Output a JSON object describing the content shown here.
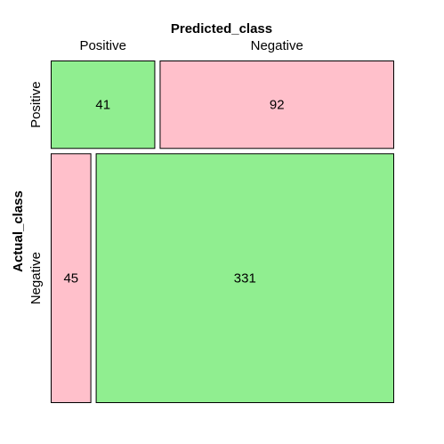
{
  "chart_data": {
    "type": "mosaic",
    "title": "Predicted_class",
    "ylabel": "Actual_class",
    "col_categories": [
      "Positive",
      "Negative"
    ],
    "row_categories": [
      "Positive",
      "Negative"
    ],
    "cells": [
      {
        "actual": "Positive",
        "predicted": "Positive",
        "value": 41
      },
      {
        "actual": "Positive",
        "predicted": "Negative",
        "value": 92
      },
      {
        "actual": "Negative",
        "predicted": "Positive",
        "value": 45
      },
      {
        "actual": "Negative",
        "predicted": "Negative",
        "value": 331
      }
    ],
    "colors": {
      "correct": "#90ee90",
      "incorrect": "#ffc0cb",
      "border": "#000000"
    }
  }
}
